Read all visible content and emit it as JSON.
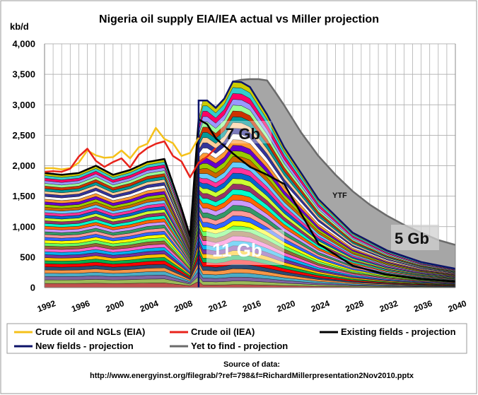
{
  "chart_data": {
    "type": "area",
    "title": "Nigeria oil supply EIA/IEA actual vs Miller projection",
    "ylabel": "kb/d",
    "ylim": [
      0,
      4000
    ],
    "yticks": [
      0,
      500,
      1000,
      1500,
      2000,
      2500,
      3000,
      3500,
      4000
    ],
    "ytick_labels": [
      "0",
      "500",
      "1,000",
      "1,500",
      "2,000",
      "2,500",
      "3,000",
      "3,500",
      "4,000"
    ],
    "xlim": [
      1992,
      2040
    ],
    "xticks": [
      1992,
      1996,
      2000,
      2004,
      2008,
      2012,
      2016,
      2020,
      2024,
      2028,
      2032,
      2036,
      2040
    ],
    "xtick_labels": [
      "1992",
      "1996",
      "2000",
      "2004",
      "2008",
      "2012",
      "2016",
      "2020",
      "2024",
      "2028",
      "2032",
      "2036",
      "2040"
    ],
    "grid": true,
    "legend_position": "bottom",
    "colors": {
      "eia": "#f5c11a",
      "iea": "#e8231b",
      "existing": "#000000",
      "new": "#0c1369",
      "ytf": "#6b6b6b",
      "ytf_fill": "#a6a6a6"
    },
    "series": [
      {
        "name": "Crude oil and NGLs (EIA)",
        "x": [
          1992,
          1993,
          1994,
          1995,
          1996,
          1997,
          1998,
          1999,
          2000,
          2001,
          2002,
          2003,
          2004,
          2005,
          2006,
          2007,
          2008,
          2009,
          2010
        ],
        "values": [
          1960,
          1960,
          1940,
          1960,
          2050,
          2250,
          2170,
          2130,
          2140,
          2250,
          2120,
          2300,
          2360,
          2620,
          2440,
          2370,
          2160,
          2210,
          2460
        ]
      },
      {
        "name": "Crude oil (IEA)",
        "x": [
          1992,
          1993,
          1994,
          1995,
          1996,
          1997,
          1998,
          1999,
          2000,
          2001,
          2002,
          2003,
          2004,
          2005,
          2006,
          2007,
          2008,
          2009,
          2010,
          2011,
          2012
        ],
        "values": [
          1900,
          1910,
          1900,
          1950,
          2150,
          2280,
          2080,
          1980,
          2060,
          2120,
          1970,
          2180,
          2290,
          2360,
          2400,
          2160,
          2070,
          1810,
          2050,
          2150,
          2290
        ]
      },
      {
        "name": "Existing fields - projection",
        "x": [
          1992,
          1994,
          1996,
          1998,
          2000,
          2002,
          2004,
          2006,
          2008,
          2009,
          2010,
          2011,
          2012,
          2014,
          2016,
          2018,
          2020,
          2024,
          2028,
          2032,
          2036,
          2040
        ],
        "values": [
          1880,
          1850,
          1880,
          2000,
          1850,
          1930,
          2060,
          2110,
          1300,
          850,
          2760,
          2680,
          2450,
          2200,
          1980,
          1850,
          1700,
          720,
          360,
          210,
          140,
          100
        ]
      },
      {
        "name": "New fields - projection",
        "x": [
          2010,
          2011,
          2012,
          2013,
          2014,
          2015,
          2016,
          2018,
          2020,
          2024,
          2028,
          2032,
          2036,
          2040
        ],
        "values": [
          3070,
          3070,
          2950,
          3100,
          3380,
          3370,
          3290,
          2840,
          2300,
          1450,
          900,
          610,
          420,
          310
        ]
      },
      {
        "name": "Yet to find - projection",
        "x": [
          2014,
          2015,
          2016,
          2017,
          2018,
          2019,
          2020,
          2022,
          2024,
          2026,
          2028,
          2030,
          2032,
          2034,
          2036,
          2038,
          2040
        ],
        "values": [
          3380,
          3410,
          3420,
          3420,
          3400,
          3200,
          2990,
          2540,
          2160,
          1850,
          1580,
          1360,
          1180,
          1030,
          900,
          780,
          700
        ]
      }
    ],
    "annotations": [
      "7 Gb",
      "11  Gb",
      "5 Gb",
      "YTF"
    ]
  },
  "legend": [
    {
      "label": "Crude oil and NGLs (EIA)",
      "color": "#f5c11a"
    },
    {
      "label": "Crude oil (IEA)",
      "color": "#e8231b"
    },
    {
      "label": "Existing fields - projection",
      "color": "#000000"
    },
    {
      "label": "New fields - projection",
      "color": "#0c1369"
    },
    {
      "label": "Yet to find - projection",
      "color": "#6b6b6b"
    }
  ],
  "source": {
    "heading": "Source of data:",
    "url": "http://www.energyinst.org/filegrab/?ref=798&f=RichardMillerpresentation2Nov2010.pptx"
  }
}
